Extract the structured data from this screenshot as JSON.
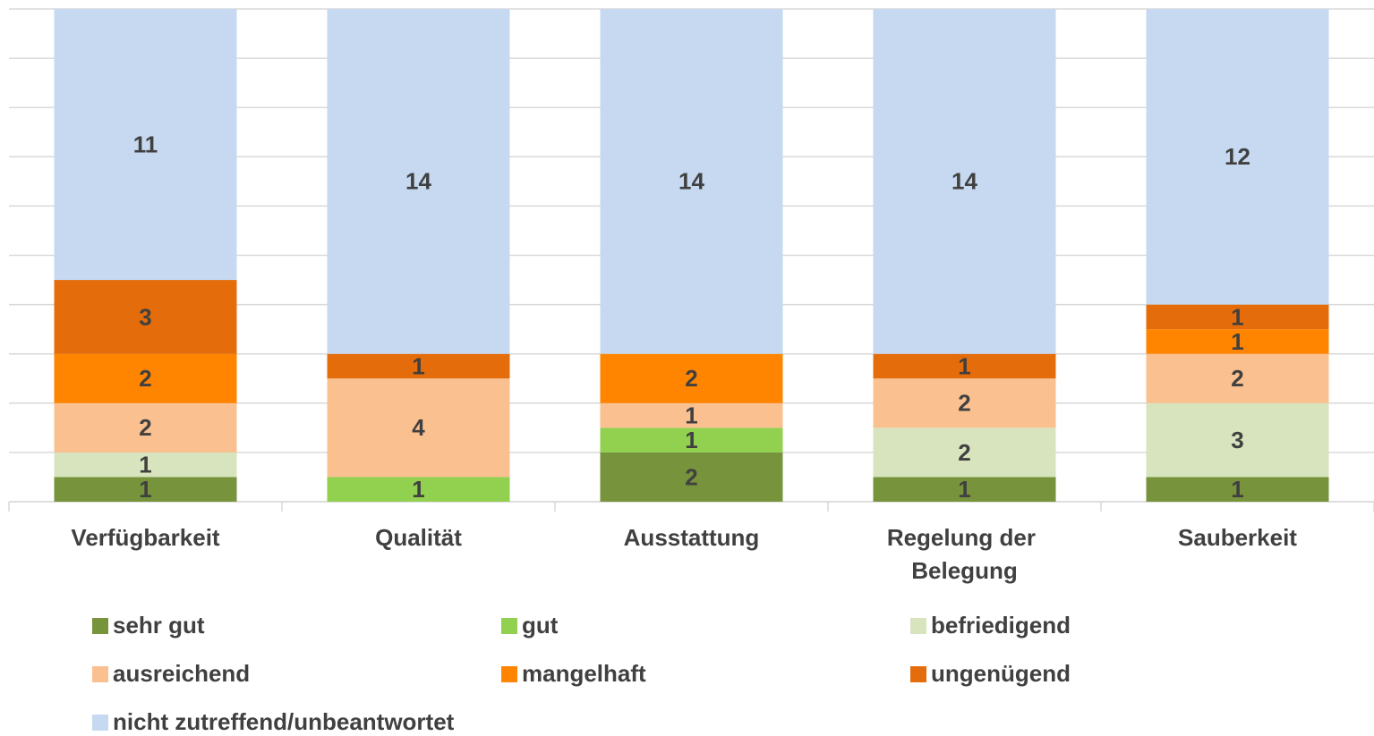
{
  "chart_data": {
    "type": "stacked_bar",
    "categories": [
      "Verfügbarkeit",
      "Qualität",
      "Ausstattung",
      "Regelung der Belegung",
      "Sauberkeit"
    ],
    "series": [
      {
        "name": "sehr gut",
        "color": "#77933c",
        "values": [
          1,
          0,
          2,
          1,
          1
        ]
      },
      {
        "name": "gut",
        "color": "#92d050",
        "values": [
          0,
          1,
          1,
          0,
          0
        ]
      },
      {
        "name": "befriedigend",
        "color": "#d7e4bd",
        "values": [
          1,
          0,
          0,
          2,
          3
        ]
      },
      {
        "name": "ausreichend",
        "color": "#fac090",
        "values": [
          2,
          4,
          1,
          2,
          2
        ]
      },
      {
        "name": "mangelhaft",
        "color": "#ff8400",
        "values": [
          2,
          0,
          2,
          0,
          1
        ]
      },
      {
        "name": "ungenügend",
        "color": "#e46c0a",
        "values": [
          3,
          1,
          0,
          1,
          1
        ]
      },
      {
        "name": "nicht zutreffend/unbeantwortet",
        "color": "#c6d9f0",
        "values": [
          11,
          14,
          14,
          14,
          12
        ]
      }
    ],
    "ylim": [
      0,
      20
    ],
    "yticks": [
      0,
      2,
      4,
      6,
      8,
      10,
      12,
      14,
      16,
      18,
      20
    ],
    "grid": true,
    "legend": "bottom"
  }
}
